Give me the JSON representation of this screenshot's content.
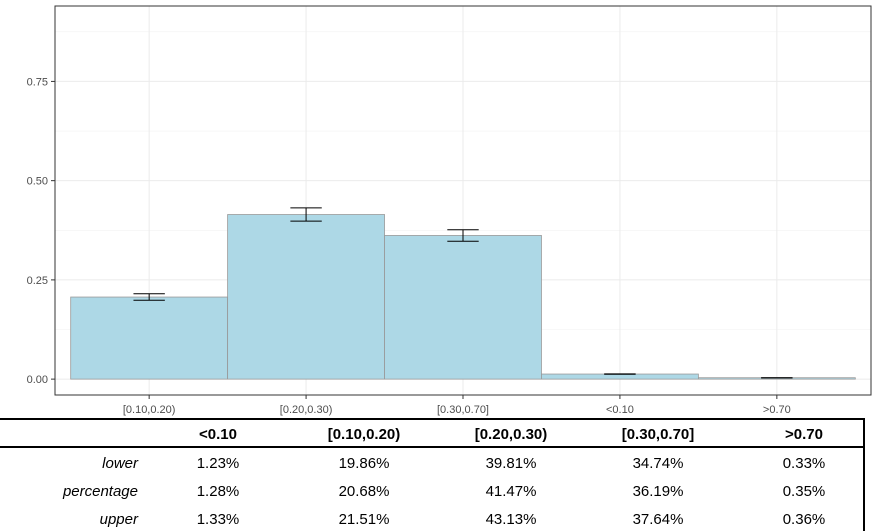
{
  "chart_data": {
    "type": "bar",
    "categories": [
      "[0.10,0.20)",
      "[0.20,0.30)",
      "[0.30,0.70]",
      "<0.10",
      ">0.70"
    ],
    "values": [
      0.2068,
      0.4147,
      0.3619,
      0.0128,
      0.0035
    ],
    "error_lower": [
      0.1986,
      0.3981,
      0.3474,
      0.0123,
      0.0033
    ],
    "error_upper": [
      0.2151,
      0.4313,
      0.3764,
      0.0133,
      0.0036
    ],
    "yticks": [
      0.0,
      0.25,
      0.5,
      0.75
    ],
    "ytick_labels": [
      "0.00",
      "0.25",
      "0.50",
      "0.75"
    ],
    "ylim": [
      -0.04,
      0.94
    ],
    "grid": true,
    "bar_color": "#add8e6"
  },
  "table": {
    "columns": [
      "<0.10",
      "[0.10,0.20)",
      "[0.20,0.30)",
      "[0.30,0.70]",
      ">0.70"
    ],
    "rows": [
      {
        "label": "lower",
        "values": [
          "1.23%",
          "19.86%",
          "39.81%",
          "34.74%",
          "0.33%"
        ]
      },
      {
        "label": "percentage",
        "values": [
          "1.28%",
          "20.68%",
          "41.47%",
          "36.19%",
          "0.35%"
        ]
      },
      {
        "label": "upper",
        "values": [
          "1.33%",
          "21.51%",
          "43.13%",
          "37.64%",
          "0.36%"
        ]
      }
    ]
  }
}
